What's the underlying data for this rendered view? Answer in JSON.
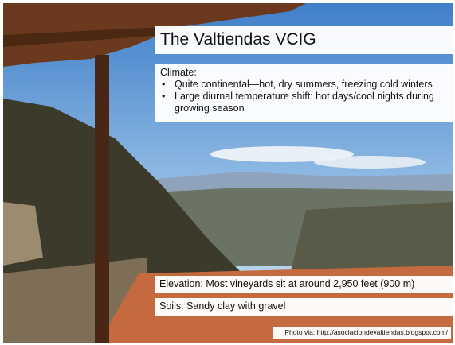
{
  "slide": {
    "title": "The Valtiendas VCIG",
    "climate": {
      "heading": "Climate:",
      "bullets": [
        "Quite continental—hot, dry summers, freezing cold winters",
        "Large diurnal temperature shift: hot days/cool nights during growing season"
      ]
    },
    "elevation": "Elevation: Most vineyards sit at around 2,950 feet (900 m)",
    "soils": "Soils: Sandy clay with gravel",
    "photo_credit": "Photo via: http://asociaciondevaltiendas.blogspot.com/"
  }
}
